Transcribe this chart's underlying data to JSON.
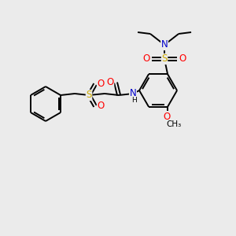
{
  "bg_color": "#ebebeb",
  "C": "#000000",
  "N": "#0000cc",
  "O": "#ff0000",
  "S": "#ccaa00",
  "bond_color": "#000000",
  "lw": 1.4,
  "figsize": [
    3.0,
    3.0
  ],
  "dpi": 100
}
